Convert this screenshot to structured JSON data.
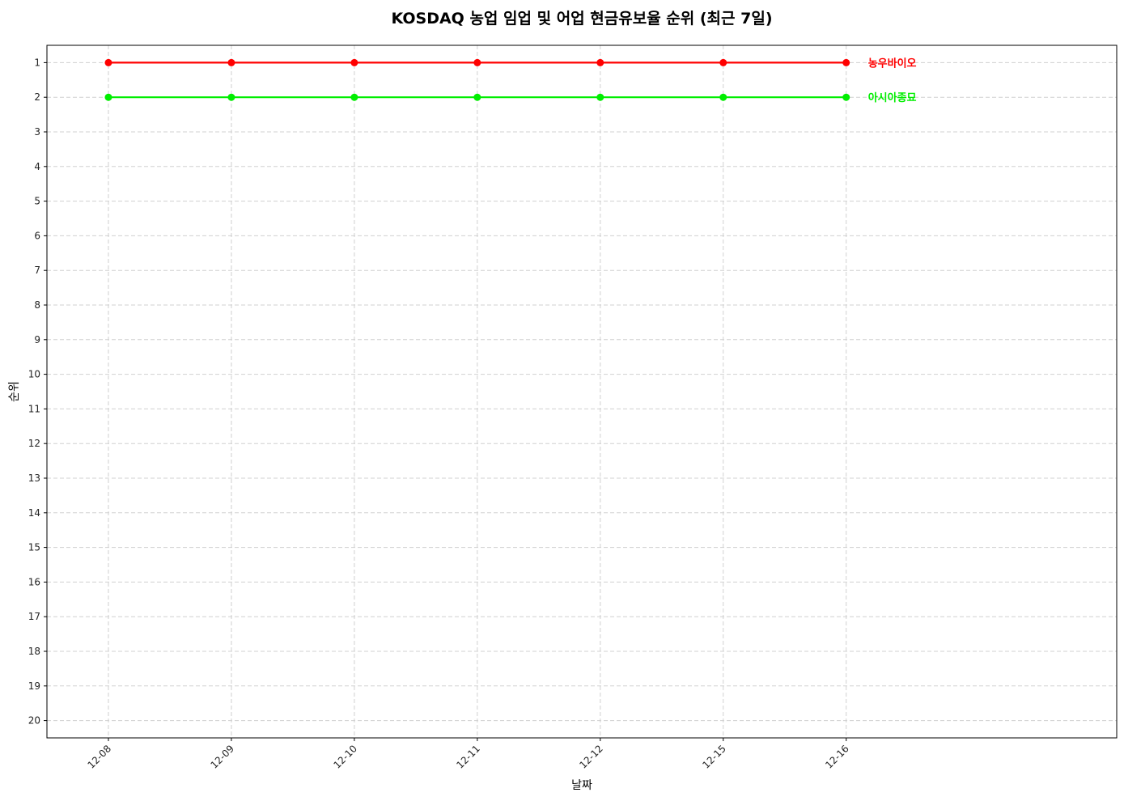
{
  "chart_data": {
    "type": "line",
    "title": "KOSDAQ 농업 임업 및 어업 현금유보율 순위 (최근 7일)",
    "xlabel": "날짜",
    "ylabel": "순위",
    "categories": [
      "12-08",
      "12-09",
      "12-10",
      "12-11",
      "12-12",
      "12-15",
      "12-16"
    ],
    "yticks": [
      1,
      2,
      3,
      4,
      5,
      6,
      7,
      8,
      9,
      10,
      11,
      12,
      13,
      14,
      15,
      16,
      17,
      18,
      19,
      20
    ],
    "ylim": [
      20.5,
      0.5
    ],
    "y_inverted": true,
    "grid": true,
    "series": [
      {
        "name": "농우바이오",
        "color": "#ff0000",
        "values": [
          1,
          1,
          1,
          1,
          1,
          1,
          1
        ]
      },
      {
        "name": "아시아종묘",
        "color": "#00ee00",
        "values": [
          2,
          2,
          2,
          2,
          2,
          2,
          2
        ]
      }
    ]
  }
}
